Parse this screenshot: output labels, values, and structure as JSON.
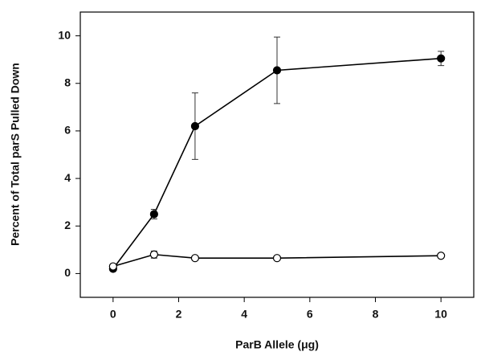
{
  "chart_data": {
    "type": "line",
    "xlabel": "ParB Allele (μg)",
    "ylabel": "Percent of Total parS Pulled Down",
    "x": [
      0,
      1.25,
      2.5,
      5,
      10
    ],
    "series": [
      {
        "color": "#000000",
        "marker_fill": "#000000",
        "values": [
          0.2,
          2.5,
          6.2,
          8.55,
          9.05
        ],
        "errors": [
          0.05,
          0.2,
          1.4,
          1.4,
          0.3
        ]
      },
      {
        "color": "#000000",
        "marker_fill": "#ffffff",
        "values": [
          0.3,
          0.8,
          0.65,
          0.65,
          0.75
        ],
        "errors": [
          0.05,
          0.15,
          0.05,
          0.05,
          0.05
        ]
      }
    ],
    "xlim": [
      -1,
      11
    ],
    "xticks": [
      0,
      2,
      4,
      6,
      8,
      10
    ],
    "ylim": [
      -1,
      11
    ],
    "yticks": [
      0,
      2,
      4,
      6,
      8,
      10
    ],
    "grid": false
  }
}
